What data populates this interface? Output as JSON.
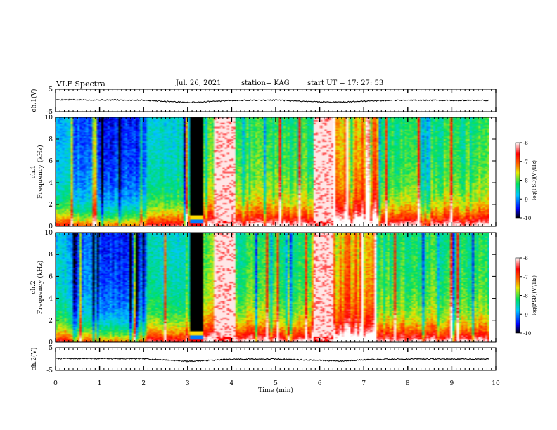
{
  "header": {
    "title": "VLF Spectra",
    "date": "Jul. 26, 2021",
    "station": "station= KAG",
    "start_ut": "start UT =  17: 27: 53"
  },
  "colors": {
    "spectrum_scale": [
      "#000066",
      "#0000ff",
      "#0080ff",
      "#00e0e0",
      "#00e040",
      "#e8e800",
      "#ff8000",
      "#ff0000",
      "#ffffff"
    ],
    "saturated_block": "#000000",
    "trace": "#000000"
  },
  "chart_data": [
    {
      "type": "line",
      "panel": "ch1-waveform",
      "ylabel": "ch.1(V)",
      "ylim": [
        -5,
        5
      ],
      "y_ticklabels": [
        "5",
        "-5"
      ],
      "x": [
        0,
        1,
        2,
        2.5,
        3,
        3.3,
        4,
        5,
        5.5,
        6,
        6.5,
        7,
        8,
        9,
        9.8
      ],
      "values": [
        0.3,
        0.2,
        0.1,
        -0.4,
        -0.9,
        -0.7,
        0.0,
        0.1,
        -0.3,
        -0.6,
        -0.8,
        -0.3,
        0.1,
        0.0,
        0.0
      ]
    },
    {
      "type": "heatmap",
      "panel": "ch1-spectrogram",
      "ylabel_channel": "ch.1",
      "ylabel": "Frequency (kHz)",
      "ylim": [
        0,
        10
      ],
      "y_ticklabels": [
        "0",
        "2",
        "4",
        "6",
        "8",
        "10"
      ],
      "colorbar": {
        "label": "log(PSD)(V²/Hz)",
        "range": [
          -10,
          -6
        ],
        "ticklabels": [
          "-6",
          "-7",
          "-8",
          "-9",
          "-10"
        ]
      },
      "features": [
        {
          "start_min": 0.0,
          "end_min": 2.05,
          "description": "broadband noise, strongest below 2 kHz"
        },
        {
          "start_min": 3.03,
          "end_min": 3.3,
          "description": "saturated / no data block"
        },
        {
          "start_min": 3.55,
          "end_min": 4.05,
          "description": "weak (white) interval"
        },
        {
          "start_min": 5.85,
          "end_min": 6.3,
          "description": "weak (white) interval"
        }
      ]
    },
    {
      "type": "heatmap",
      "panel": "ch2-spectrogram",
      "ylabel_channel": "ch.2",
      "ylabel": "Frequency (kHz)",
      "ylim": [
        0,
        10
      ],
      "y_ticklabels": [
        "0",
        "2",
        "4",
        "6",
        "8",
        "10"
      ],
      "colorbar": {
        "label": "log(PSD)(V²/Hz)",
        "range": [
          -10,
          -6
        ],
        "ticklabels": [
          "-6",
          "-7",
          "-8",
          "-9",
          "-10"
        ]
      }
    },
    {
      "type": "line",
      "panel": "ch2-waveform",
      "ylabel": "ch.2(V)",
      "ylim": [
        -5,
        5
      ],
      "y_ticklabels": [
        "5",
        "-5"
      ],
      "xlabel": "Time (min)",
      "xlim": [
        0,
        10
      ],
      "x_ticklabels": [
        "0",
        "1",
        "2",
        "3",
        "4",
        "5",
        "6",
        "7",
        "8",
        "9",
        "10"
      ],
      "x": [
        0,
        1,
        2,
        2.5,
        3,
        3.3,
        4,
        5,
        5.5,
        6,
        6.5,
        7,
        8,
        9,
        9.8
      ],
      "values": [
        0.2,
        0.2,
        0.1,
        -0.4,
        -1.0,
        -0.8,
        -0.1,
        0.0,
        -0.3,
        -0.6,
        -0.9,
        -0.3,
        0.0,
        0.0,
        0.0
      ]
    }
  ]
}
